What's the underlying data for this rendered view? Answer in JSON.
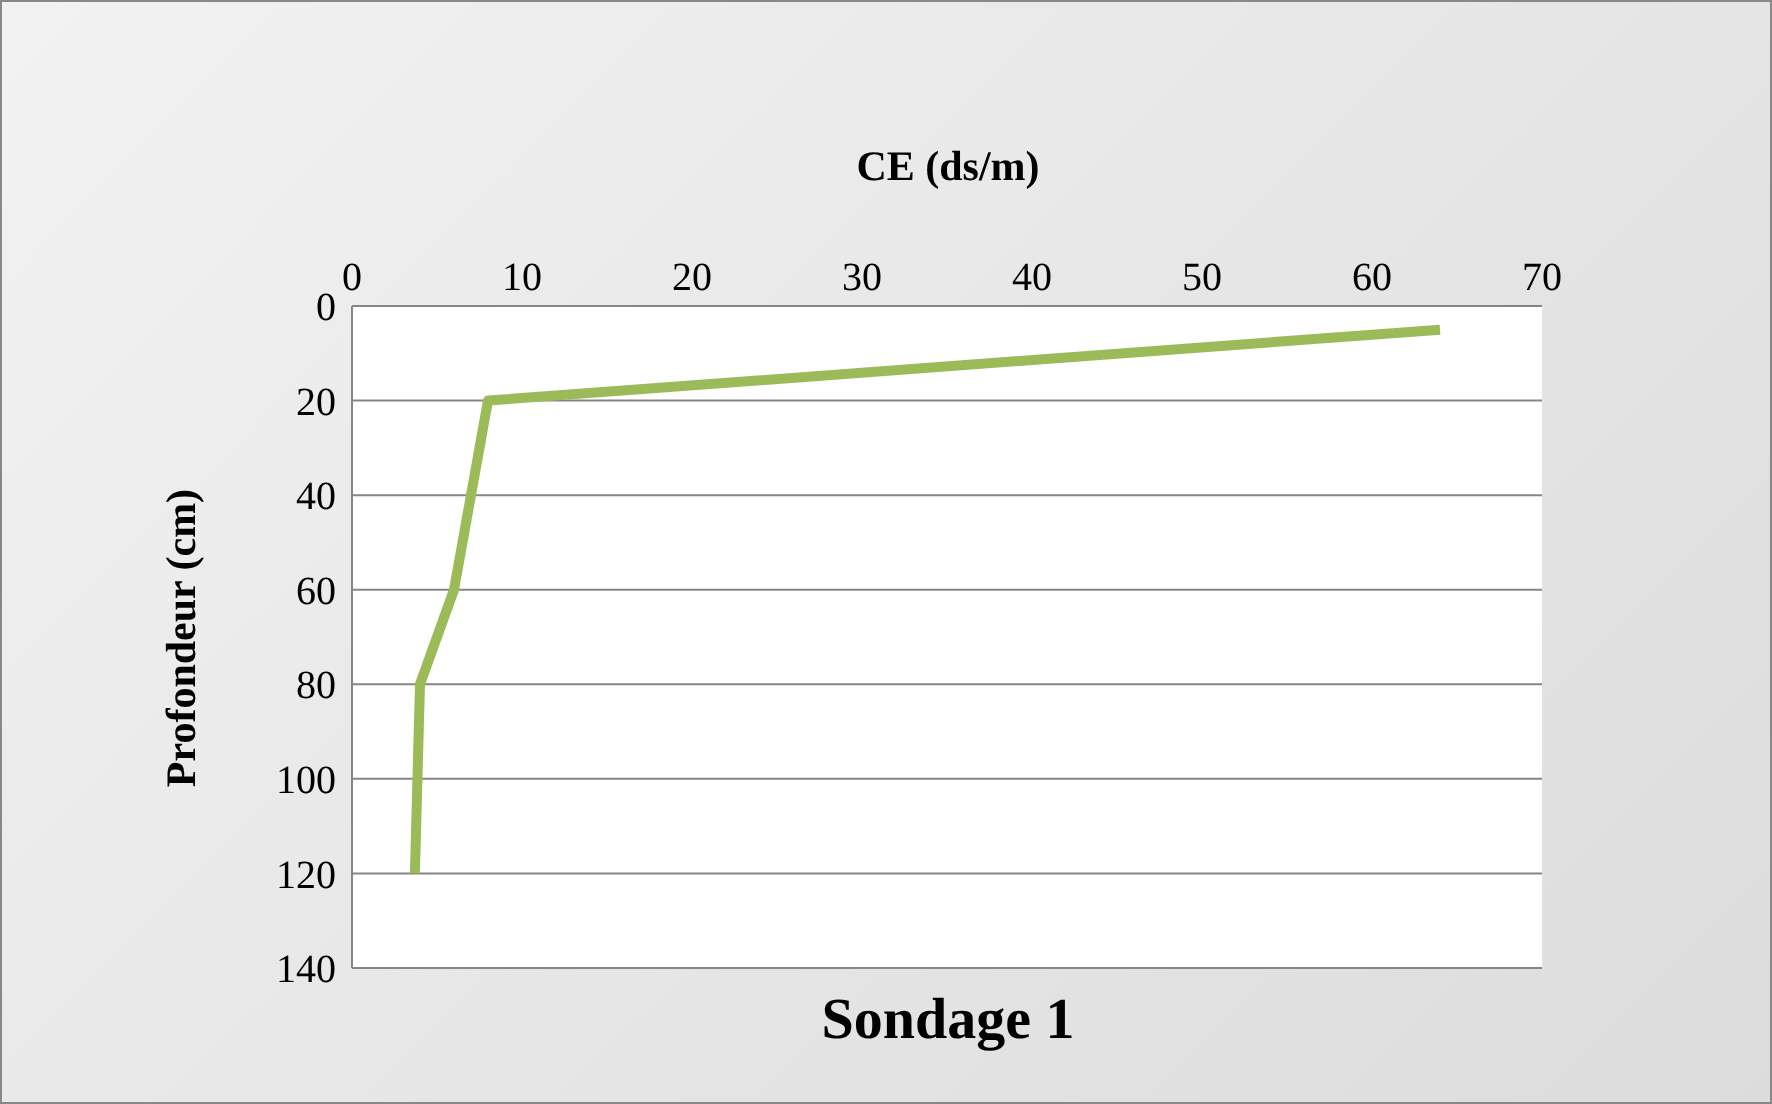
{
  "chart_data": {
    "type": "line",
    "title": "Sondage 1",
    "xlabel": "CE (ds/m)",
    "ylabel": "Profondeur (cm)",
    "x": [
      64,
      8,
      6,
      4,
      3.7
    ],
    "series": [
      {
        "color": "#9bbb59",
        "values": [
          5,
          20,
          60,
          80,
          120
        ]
      }
    ],
    "xlim": [
      0,
      70
    ],
    "xticks": [
      0,
      10,
      20,
      30,
      40,
      50,
      60,
      70
    ],
    "ylim": [
      140,
      0
    ],
    "yticks": [
      0,
      20,
      40,
      60,
      80,
      100,
      120,
      140
    ],
    "grid": "y",
    "legend": false,
    "marker": "none",
    "line_style": "solid"
  }
}
